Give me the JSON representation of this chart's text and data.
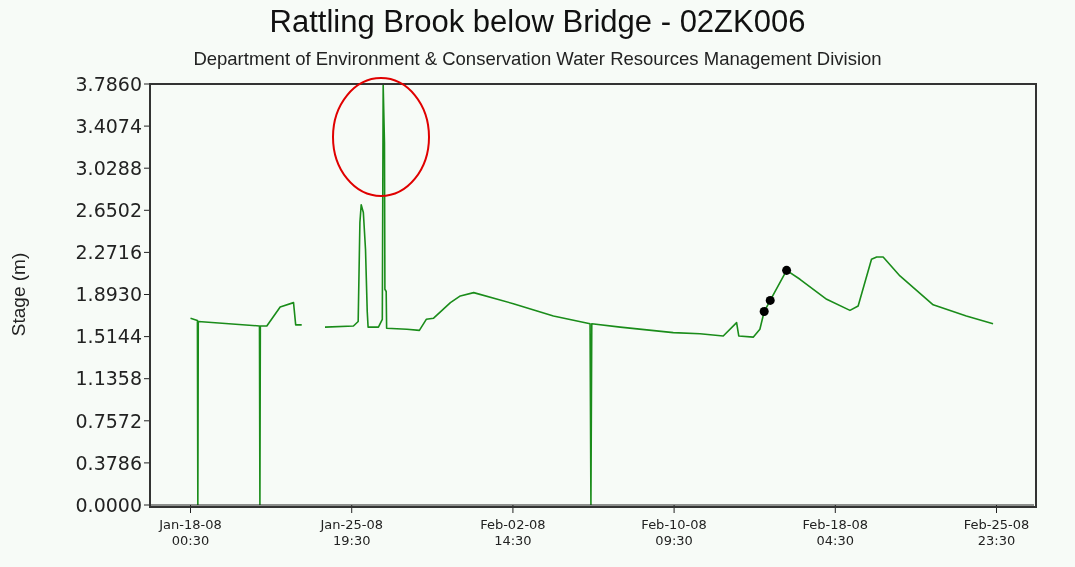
{
  "chart_data": {
    "type": "line",
    "title": "Rattling Brook below Bridge - 02ZK006",
    "subtitle": "Department of Environment & Conservation Water Resources Management Division",
    "ylabel": "Stage (m)",
    "xlim": [
      "--01-16T01:30",
      "--02-27T19:00"
    ],
    "xticks": [
      {
        "value": "--01-18T00:30",
        "label": "Jan-18-08 00:30"
      },
      {
        "value": "--01-25T19:30",
        "label": "Jan-25-08 19:30"
      },
      {
        "value": "--02-02T14:30",
        "label": "Feb-02-08 14:30"
      },
      {
        "value": "--02-10T09:30",
        "label": "Feb-10-08 09:30"
      },
      {
        "value": "--02-18T04:30",
        "label": "Feb-18-08 04:30"
      },
      {
        "value": "--02-25T23:30",
        "label": "Feb-25-08 23:30"
      }
    ],
    "ylim": [
      0,
      3.786
    ],
    "yticks": [
      {
        "value": 0,
        "label": "0.0000"
      },
      {
        "value": 0.3786,
        "label": "0.3786"
      },
      {
        "value": 0.7572,
        "label": "0.7572"
      },
      {
        "value": 1.1358,
        "label": "1.1358"
      },
      {
        "value": 1.5144,
        "label": "1.5144"
      },
      {
        "value": 1.893,
        "label": "1.8930"
      },
      {
        "value": 2.2716,
        "label": "2.2716"
      },
      {
        "value": 2.6502,
        "label": "2.6502"
      },
      {
        "value": 3.0288,
        "label": "3.0288"
      },
      {
        "value": 3.4074,
        "label": "3.4074"
      },
      {
        "value": 3.786,
        "label": "3.7860"
      }
    ],
    "grid": false,
    "series": [
      {
        "color": "#1a8c1a",
        "x": [
          "--01-18T00:30",
          "--01-18T08:30",
          "--01-18T09:00",
          "--01-18T09:30",
          "--01-21T08:30",
          "--01-21T09:00",
          "--01-21T09:30",
          "--01-21T17:00",
          "--01-22T08:30",
          "--01-23T00:00",
          "--01-23T02:30",
          "--01-23T09:30",
          "--01-23T19:00",
          "--01-24T12:30",
          "--01-25T21:30",
          "--01-26T03:00",
          "--01-26T05:00",
          "--01-26T06:30",
          "--01-26T09:00",
          "--01-26T11:30",
          "--01-26T13:30",
          "--01-26T14:30",
          "--01-27T02:30",
          "--01-27T07:00",
          "--01-27T08:00",
          "--01-27T09:30",
          "--01-27T10:00",
          "--01-27T11:30",
          "--01-27T12:00",
          "--01-28T11:30",
          "--01-29T02:00",
          "--01-29T10:00",
          "--01-29T18:30",
          "--01-30T14:00",
          "--01-31T01:30",
          "--01-31T17:00",
          "--02-02T15:00",
          "--02-04T13:30",
          "--02-06T08:00",
          "--02-06T09:00",
          "--02-06T10:00",
          "--02-07T19:00",
          "--02-10T08:30",
          "--02-11T15:30",
          "--02-12T18:30",
          "--02-13T10:00",
          "--02-13T12:30",
          "--02-14T05:30",
          "--02-14T13:00",
          "--02-14T18:00",
          "--02-15T01:00",
          "--02-15T20:00",
          "--02-16T11:30",
          "--02-17T18:30",
          "--02-18T21:30",
          "--02-19T07:00",
          "--02-19T22:30",
          "--02-20T04:30",
          "--02-20T12:00",
          "--02-21T07:30",
          "--02-22T22:00",
          "--02-24T12:30",
          "--02-25T19:30"
        ],
        "values": [
          1.68,
          1.66,
          0,
          1.65,
          1.61,
          0,
          1.61,
          1.61,
          1.78,
          1.82,
          1.62,
          1.62,
          null,
          1.6,
          1.61,
          1.65,
          2.54,
          2.7,
          2.63,
          2.3,
          1.74,
          1.6,
          1.6,
          1.67,
          3.78,
          3.26,
          1.94,
          1.92,
          1.59,
          1.58,
          1.57,
          1.67,
          1.68,
          1.82,
          1.88,
          1.91,
          1.81,
          1.7,
          1.63,
          0,
          1.63,
          1.6,
          1.55,
          1.54,
          1.52,
          1.64,
          1.52,
          1.51,
          1.58,
          1.74,
          1.84,
          2.11,
          2.03,
          1.85,
          1.75,
          1.79,
          2.21,
          2.23,
          2.23,
          2.06,
          1.8,
          1.7,
          1.63
        ]
      },
      {
        "type": "scatter",
        "color": "#000000",
        "x": [
          "--02-14T18:00",
          "--02-15T01:00",
          "--02-15T20:00"
        ],
        "values": [
          1.74,
          1.84,
          2.11
        ]
      }
    ]
  }
}
